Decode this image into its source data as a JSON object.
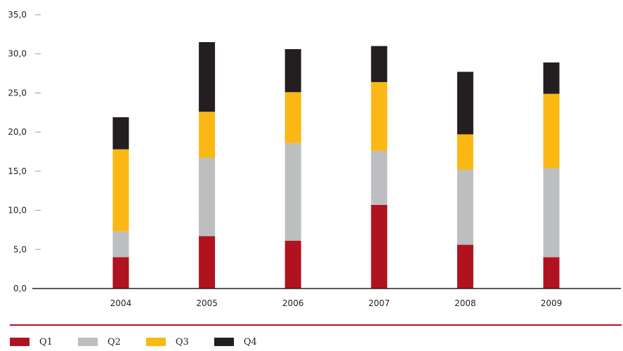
{
  "chart_data": {
    "type": "bar",
    "stacked": true,
    "categories": [
      "2004",
      "2005",
      "2006",
      "2007",
      "2008",
      "2009"
    ],
    "series": [
      {
        "name": "Q1",
        "color": "#b0121f",
        "values": [
          4.0,
          6.7,
          6.1,
          10.7,
          5.6,
          4.0
        ]
      },
      {
        "name": "Q2",
        "color": "#bdbec0",
        "values": [
          3.3,
          10.0,
          12.5,
          6.9,
          9.6,
          11.4
        ]
      },
      {
        "name": "Q3",
        "color": "#fbb714",
        "values": [
          10.5,
          5.9,
          6.5,
          8.8,
          4.5,
          9.5
        ]
      },
      {
        "name": "Q4",
        "color": "#231f20",
        "values": [
          4.1,
          8.9,
          5.5,
          4.6,
          8.0,
          4.0
        ]
      }
    ],
    "y_ticks": [
      "0,0",
      "5,0",
      "10,0",
      "15,0",
      "20,0",
      "25,0",
      "30,0",
      "35,0"
    ],
    "ylim": [
      0,
      35
    ],
    "grid": false,
    "legend_position": "bottom-left"
  }
}
